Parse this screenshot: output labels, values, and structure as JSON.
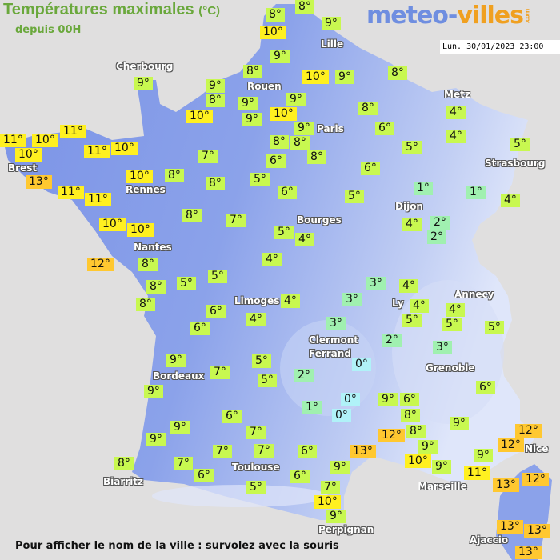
{
  "header": {
    "title": "Températures maximales",
    "unit": "(°C)",
    "subtitle": "depuis 00H"
  },
  "logo": {
    "part1": "meteo-",
    "part2": "villes",
    "suffix": ".com"
  },
  "date": "Lun. 30/01/2023 23:00",
  "footer": "Pour afficher le nom de la ville : survolez avec la souris",
  "colors": {
    "background": "#e0dfdf",
    "land": "#7b93e6",
    "land_high": "#b9c8f2",
    "title": "#6aa83c",
    "temp_le0": "#b0f2f8",
    "temp_1_3": "#a0f0b0",
    "temp_4_9": "#c8f850",
    "temp_10_11": "#fff020",
    "temp_12_plus": "#ffc830"
  },
  "cities": [
    "Cherbourg",
    "Rouen",
    "Lille",
    "Paris",
    "Metz",
    "Strasbourg",
    "Brest",
    "Rennes",
    "Dijon",
    "Bourges",
    "Nantes",
    "Limoges",
    "Annecy",
    "Ly",
    "Clermont",
    "Ferrand",
    "Grenoble",
    "Bordeaux",
    "Toulouse",
    "Biarritz",
    "Marseille",
    "Nice",
    "Perpignan",
    "Ajaccio"
  ],
  "temperatures": [
    8,
    8,
    10,
    9,
    9,
    8,
    9,
    8,
    9,
    9,
    10,
    10,
    9,
    10,
    9,
    8,
    9,
    8,
    6,
    8,
    8,
    8,
    5,
    4,
    4,
    5,
    6,
    5,
    1,
    1,
    4,
    4,
    2,
    2,
    9,
    11,
    11,
    10,
    10,
    11,
    10,
    13,
    11,
    11,
    10,
    10,
    12,
    10,
    8,
    7,
    8,
    5,
    6,
    6,
    8,
    7,
    5,
    4,
    8,
    5,
    5,
    4,
    8,
    8,
    6,
    6,
    4,
    4,
    9,
    9,
    7,
    5,
    5,
    6,
    7,
    9,
    9,
    7,
    7,
    8,
    7,
    6,
    5,
    6,
    6,
    9,
    7,
    10,
    9,
    13,
    12,
    3,
    4,
    3,
    4,
    5,
    3,
    2,
    3,
    2,
    1,
    0,
    0,
    0,
    9,
    6,
    8,
    8,
    9,
    10,
    9,
    11,
    9,
    9,
    6,
    4,
    5,
    5,
    12,
    12,
    12,
    13,
    13,
    13,
    13
  ]
}
